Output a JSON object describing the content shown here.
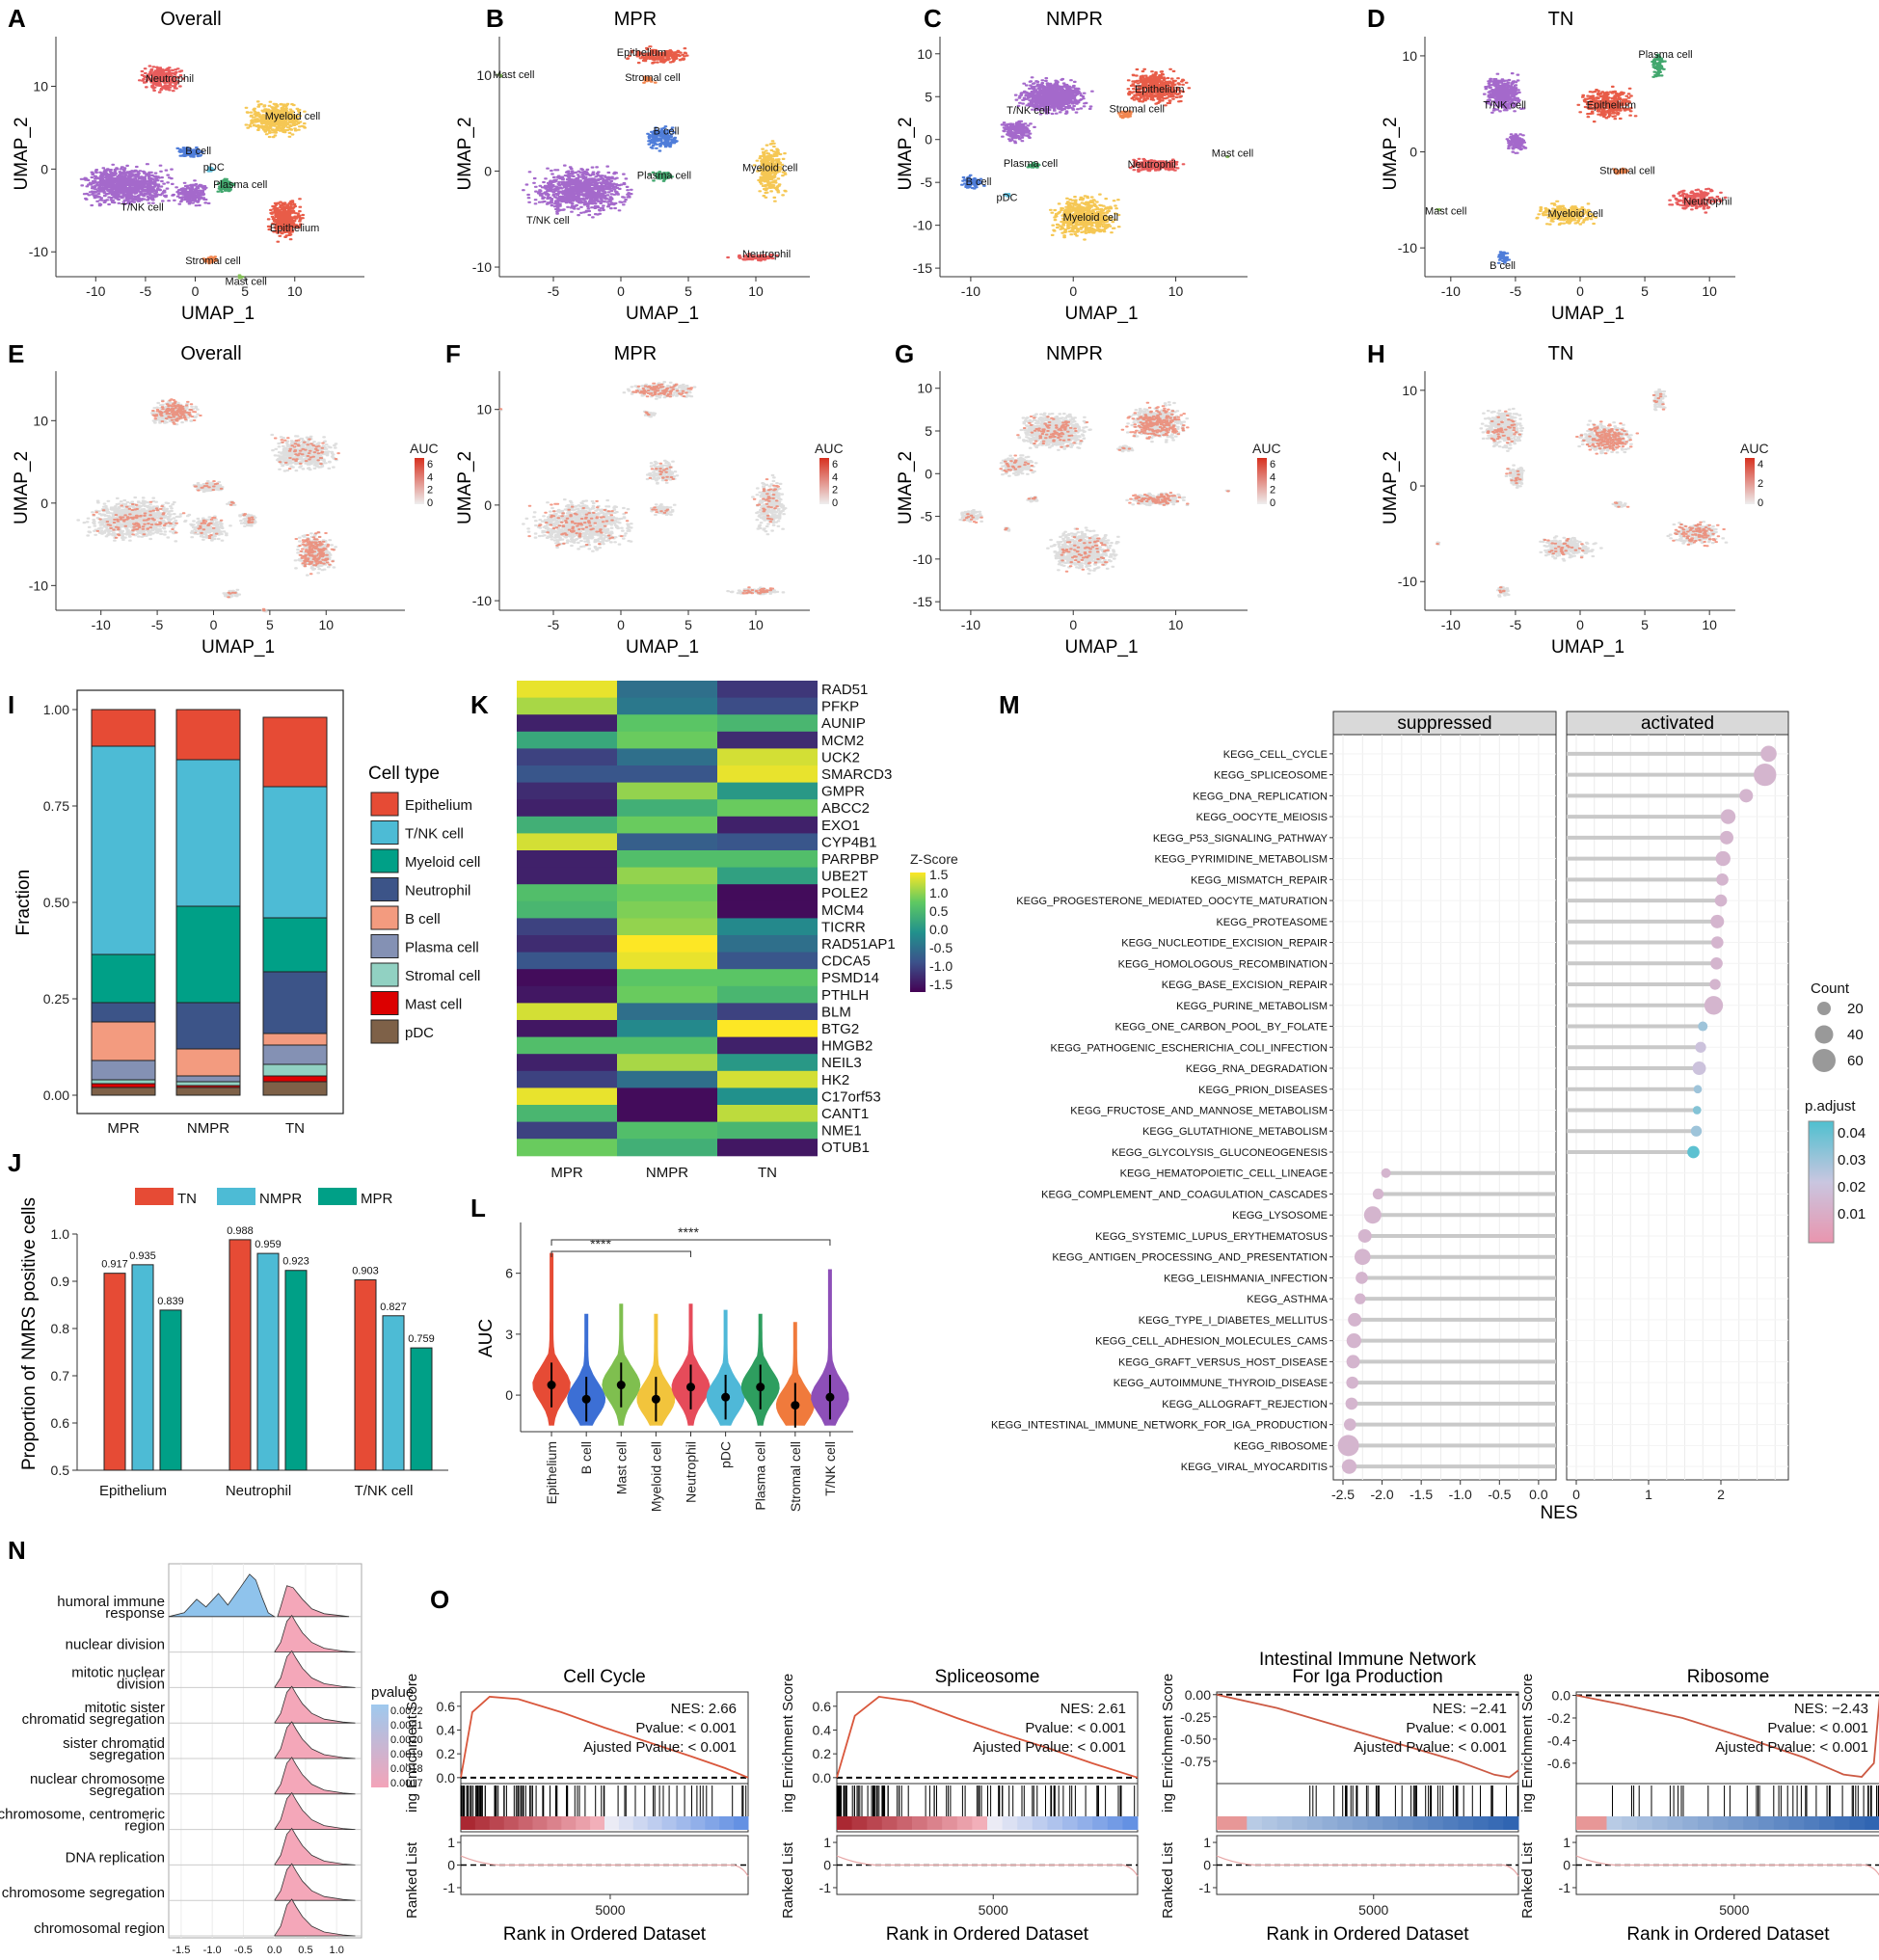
{
  "panel_letters": [
    "A",
    "B",
    "C",
    "D",
    "E",
    "F",
    "G",
    "H",
    "I",
    "J",
    "K",
    "L",
    "M",
    "N",
    "O"
  ],
  "umap_titles": [
    "Overall",
    "MPR",
    "NMPR",
    "TN"
  ],
  "umap_axes": {
    "x": "UMAP_1",
    "y": "UMAP_2"
  },
  "umap_celltype_labels": {
    "A": [
      "Neutrophil",
      "Myeloid cell",
      "B cell",
      "pDC",
      "Plasma cell",
      "T/NK cell",
      "Epithelium",
      "Stromal cell",
      "Mast cell"
    ],
    "B": [
      "Epithelium",
      "Stromal cell",
      "Mast cell",
      "B cell",
      "Plasma cell",
      "Myeloid cell",
      "T/NK cell",
      "Neutrophil"
    ],
    "C": [
      "T/NK cell",
      "Epithelium",
      "Stromal cell",
      "Plasma cell",
      "Neutrophil",
      "Mast cell",
      "B cell",
      "pDC",
      "Myeloid cell"
    ],
    "D": [
      "Plasma cell",
      "T/NK cell",
      "Epithelium",
      "Stromal cell",
      "Neutrophil",
      "Myeloid cell",
      "Mast cell",
      "B cell"
    ]
  },
  "auc_legend": {
    "title": "AUC",
    "ticks": [
      "6",
      "4",
      "2",
      "0"
    ],
    "ticks_h": [
      "4",
      "2",
      "0"
    ]
  },
  "chart_data": [
    {
      "id": "I",
      "type": "bar",
      "stacked": true,
      "categories": [
        "MPR",
        "NMPR",
        "TN"
      ],
      "ylabel": "Fraction",
      "ylim": [
        0,
        1
      ],
      "yticks": [
        "0.00",
        "0.25",
        "0.50",
        "0.75",
        "1.00"
      ],
      "legend_title": "Cell type",
      "series": [
        {
          "name": "Epithelium",
          "color": "#e64b35",
          "values": [
            0.095,
            0.13,
            0.18
          ]
        },
        {
          "name": "T/NK cell",
          "color": "#4dbbd5",
          "values": [
            0.54,
            0.38,
            0.34
          ]
        },
        {
          "name": "Myeloid cell",
          "color": "#00a087",
          "values": [
            0.125,
            0.25,
            0.14
          ]
        },
        {
          "name": "Neutrophil",
          "color": "#3c5488",
          "values": [
            0.05,
            0.12,
            0.16
          ]
        },
        {
          "name": "B cell",
          "color": "#f39b7f",
          "values": [
            0.1,
            0.07,
            0.03
          ]
        },
        {
          "name": "Plasma cell",
          "color": "#8491b4",
          "values": [
            0.05,
            0.015,
            0.05
          ]
        },
        {
          "name": "Stromal cell",
          "color": "#91d1c2",
          "values": [
            0.01,
            0.01,
            0.03
          ]
        },
        {
          "name": "Mast cell",
          "color": "#dc0000",
          "values": [
            0.01,
            0.005,
            0.015
          ]
        },
        {
          "name": "pDC",
          "color": "#7e6148",
          "values": [
            0.02,
            0.02,
            0.035
          ]
        }
      ]
    },
    {
      "id": "J",
      "type": "bar",
      "categories": [
        "Epithelium",
        "Neutrophil",
        "T/NK cell"
      ],
      "ylabel": "Proportion of NMRS positive cells",
      "ylim": [
        0.5,
        1.0
      ],
      "yticks": [
        "0.5",
        "0.6",
        "0.7",
        "0.8",
        "0.9",
        "1.0"
      ],
      "series": [
        {
          "name": "TN",
          "color": "#e64b35",
          "values": [
            0.917,
            0.988,
            0.903
          ]
        },
        {
          "name": "NMPR",
          "color": "#4dbbd5",
          "values": [
            0.935,
            0.959,
            0.827
          ]
        },
        {
          "name": "MPR",
          "color": "#00a087",
          "values": [
            0.839,
            0.923,
            0.759
          ]
        }
      ],
      "value_labels": [
        [
          "0.917",
          "0.935",
          "0.839"
        ],
        [
          "0.988",
          "0.959",
          "0.923"
        ],
        [
          "0.903",
          "0.827",
          "0.759"
        ]
      ]
    },
    {
      "id": "K",
      "type": "heatmap",
      "columns": [
        "MPR",
        "NMPR",
        "TN"
      ],
      "rows": [
        "RAD51",
        "PFKP",
        "AUNIP",
        "MCM2",
        "UCK2",
        "SMARCD3",
        "GMPR",
        "ABCC2",
        "EXO1",
        "CYP4B1",
        "PARPBP",
        "UBE2T",
        "POLE2",
        "MCM4",
        "TICRR",
        "RAD51AP1",
        "CDCA5",
        "PSMD14",
        "PTHLH",
        "BLM",
        "BTG2",
        "HMGB2",
        "NEIL3",
        "HK2",
        "C17orf53",
        "CANT1",
        "NME1",
        "OTUB1"
      ],
      "values": [
        [
          1.4,
          -0.4,
          -1.0
        ],
        [
          1.1,
          -0.3,
          -0.8
        ],
        [
          -1.2,
          0.7,
          0.5
        ],
        [
          0.3,
          0.8,
          -1.1
        ],
        [
          -0.9,
          -0.4,
          1.3
        ],
        [
          -0.7,
          -0.7,
          1.4
        ],
        [
          -1.1,
          1.0,
          0.1
        ],
        [
          -1.2,
          0.4,
          0.8
        ],
        [
          0.4,
          0.8,
          -1.2
        ],
        [
          1.3,
          -0.6,
          -0.7
        ],
        [
          -1.2,
          0.6,
          0.6
        ],
        [
          -1.2,
          1.0,
          0.2
        ],
        [
          0.6,
          0.8,
          -1.4
        ],
        [
          0.5,
          0.9,
          -1.4
        ],
        [
          -0.9,
          1.0,
          -0.1
        ],
        [
          -1.1,
          1.5,
          -0.4
        ],
        [
          -0.7,
          1.4,
          -0.7
        ],
        [
          -1.4,
          0.7,
          0.7
        ],
        [
          -1.3,
          0.8,
          0.5
        ],
        [
          1.3,
          -0.4,
          -0.9
        ],
        [
          -1.3,
          -0.1,
          1.5
        ],
        [
          0.6,
          0.6,
          -1.2
        ],
        [
          -1.2,
          1.1,
          0.1
        ],
        [
          -0.9,
          -0.4,
          1.3
        ],
        [
          1.4,
          -1.4,
          0.0
        ],
        [
          0.5,
          -1.4,
          1.2
        ],
        [
          -0.9,
          0.6,
          0.5
        ],
        [
          0.8,
          0.4,
          -1.3
        ]
      ],
      "legend_title": "Z-Score",
      "legend_ticks": [
        "1.5",
        "1.0",
        "0.5",
        "0.0",
        "-0.5",
        "-1.0",
        "-1.5"
      ],
      "colormap": [
        "#fde725",
        "#5ec962",
        "#21918c",
        "#3b528b",
        "#440154"
      ]
    },
    {
      "id": "L",
      "type": "violin",
      "categories": [
        "Epithelium",
        "B cell",
        "Mast cell",
        "Myeloid cell",
        "Neutrophil",
        "pDC",
        "Plasma cell",
        "Stromal cell",
        "T/NK cell"
      ],
      "colors": [
        "#e64b35",
        "#3c6fd5",
        "#7fbf4f",
        "#f2c43c",
        "#e64b5a",
        "#4fb8d8",
        "#2e9e5f",
        "#f07a3c",
        "#8d4fb8"
      ],
      "medians": [
        0.5,
        -0.2,
        0.5,
        -0.2,
        0.4,
        -0.1,
        0.4,
        -0.5,
        -0.1
      ],
      "max": [
        7.0,
        4.0,
        4.5,
        4.0,
        4.5,
        4.2,
        4.0,
        3.6,
        6.2
      ],
      "min": [
        -1.5,
        -1.5,
        -1.5,
        -1.5,
        -1.5,
        -1.5,
        -1.5,
        -1.5,
        -1.5
      ],
      "ylabel": "AUC",
      "ylim": [
        -1.8,
        8.5
      ],
      "yticks": [
        "0",
        "3",
        "6"
      ],
      "significance": [
        {
          "from": "Epithelium",
          "to": "Neutrophil",
          "label": "****"
        },
        {
          "from": "Epithelium",
          "to": "T/NK cell",
          "label": "****"
        }
      ]
    },
    {
      "id": "M",
      "type": "scatter",
      "facets": [
        "suppressed",
        "activated"
      ],
      "xlabel": "NES",
      "xticks_suppressed": [
        "-2.5",
        "-2.0",
        "-1.5",
        "-1.0",
        "-0.5",
        "0.0"
      ],
      "xticks_activated": [
        "0",
        "1",
        "2"
      ],
      "pathways": [
        {
          "name": "KEGG_CELL_CYCLE",
          "nes": 2.66,
          "count": 40,
          "p": 0.017
        },
        {
          "name": "KEGG_SPLICEOSOME",
          "nes": 2.61,
          "count": 65,
          "p": 0.017
        },
        {
          "name": "KEGG_DNA_REPLICATION",
          "nes": 2.35,
          "count": 30,
          "p": 0.017
        },
        {
          "name": "KEGG_OOCYTE_MEIOSIS",
          "nes": 2.1,
          "count": 35,
          "p": 0.017
        },
        {
          "name": "KEGG_P53_SIGNALING_PATHWAY",
          "nes": 2.08,
          "count": 30,
          "p": 0.017
        },
        {
          "name": "KEGG_PYRIMIDINE_METABOLISM",
          "nes": 2.03,
          "count": 35,
          "p": 0.017
        },
        {
          "name": "KEGG_MISMATCH_REPAIR",
          "nes": 2.02,
          "count": 25,
          "p": 0.017
        },
        {
          "name": "KEGG_PROGESTERONE_MEDIATED_OOCYTE_MATURATION",
          "nes": 2.0,
          "count": 25,
          "p": 0.017
        },
        {
          "name": "KEGG_PROTEASOME",
          "nes": 1.95,
          "count": 30,
          "p": 0.017
        },
        {
          "name": "KEGG_NUCLEOTIDE_EXCISION_REPAIR",
          "nes": 1.95,
          "count": 25,
          "p": 0.017
        },
        {
          "name": "KEGG_HOMOLOGOUS_RECOMBINATION",
          "nes": 1.94,
          "count": 25,
          "p": 0.017
        },
        {
          "name": "KEGG_BASE_EXCISION_REPAIR",
          "nes": 1.92,
          "count": 20,
          "p": 0.017
        },
        {
          "name": "KEGG_PURINE_METABOLISM",
          "nes": 1.9,
          "count": 50,
          "p": 0.017
        },
        {
          "name": "KEGG_ONE_CARBON_POOL_BY_FOLATE",
          "nes": 1.75,
          "count": 15,
          "p": 0.03
        },
        {
          "name": "KEGG_PATHOGENIC_ESCHERICHIA_COLI_INFECTION",
          "nes": 1.72,
          "count": 20,
          "p": 0.022
        },
        {
          "name": "KEGG_RNA_DEGRADATION",
          "nes": 1.7,
          "count": 30,
          "p": 0.022
        },
        {
          "name": "KEGG_PRION_DISEASES",
          "nes": 1.68,
          "count": 10,
          "p": 0.03
        },
        {
          "name": "KEGG_FRUCTOSE_AND_MANNOSE_METABOLISM",
          "nes": 1.67,
          "count": 10,
          "p": 0.034
        },
        {
          "name": "KEGG_GLUTATHIONE_METABOLISM",
          "nes": 1.66,
          "count": 20,
          "p": 0.03
        },
        {
          "name": "KEGG_GLYCOLYSIS_GLUCONEOGENESIS",
          "nes": 1.62,
          "count": 25,
          "p": 0.04
        },
        {
          "name": "KEGG_HEMATOPOIETIC_CELL_LINEAGE",
          "nes": -1.95,
          "count": 15,
          "p": 0.017
        },
        {
          "name": "KEGG_COMPLEMENT_AND_COAGULATION_CASCADES",
          "nes": -2.05,
          "count": 20,
          "p": 0.017
        },
        {
          "name": "KEGG_LYSOSOME",
          "nes": -2.12,
          "count": 45,
          "p": 0.017
        },
        {
          "name": "KEGG_SYSTEMIC_LUPUS_ERYTHEMATOSUS",
          "nes": -2.22,
          "count": 30,
          "p": 0.017
        },
        {
          "name": "KEGG_ANTIGEN_PROCESSING_AND_PRESENTATION",
          "nes": -2.25,
          "count": 40,
          "p": 0.017
        },
        {
          "name": "KEGG_LEISHMANIA_INFECTION",
          "nes": -2.26,
          "count": 25,
          "p": 0.017
        },
        {
          "name": "KEGG_ASTHMA",
          "nes": -2.28,
          "count": 20,
          "p": 0.017
        },
        {
          "name": "KEGG_TYPE_I_DIABETES_MELLITUS",
          "nes": -2.35,
          "count": 30,
          "p": 0.017
        },
        {
          "name": "KEGG_CELL_ADHESION_MOLECULES_CAMS",
          "nes": -2.36,
          "count": 35,
          "p": 0.017
        },
        {
          "name": "KEGG_GRAFT_VERSUS_HOST_DISEASE",
          "nes": -2.37,
          "count": 30,
          "p": 0.017
        },
        {
          "name": "KEGG_AUTOIMMUNE_THYROID_DISEASE",
          "nes": -2.38,
          "count": 25,
          "p": 0.017
        },
        {
          "name": "KEGG_ALLOGRAFT_REJECTION",
          "nes": -2.39,
          "count": 25,
          "p": 0.017
        },
        {
          "name": "KEGG_INTESTINAL_IMMUNE_NETWORK_FOR_IGA_PRODUCTION",
          "nes": -2.41,
          "count": 25,
          "p": 0.017
        },
        {
          "name": "KEGG_RIBOSOME",
          "nes": -2.43,
          "count": 60,
          "p": 0.017
        },
        {
          "name": "KEGG_VIRAL_MYOCARDITIS",
          "nes": -2.42,
          "count": 35,
          "p": 0.017
        }
      ],
      "size_legend_title": "Count",
      "size_legend": [
        "20",
        "40",
        "60"
      ],
      "color_legend_title": "p.adjust",
      "color_legend": [
        "0.04",
        "0.03",
        "0.02",
        "0.01"
      ]
    },
    {
      "id": "N",
      "type": "area",
      "subtype": "ridgeline",
      "categories": [
        "humoral immune response",
        "nuclear division",
        "mitotic nuclear division",
        "mitotic sister chromatid segregation",
        "sister chromatid segregation",
        "nuclear chromosome segregation",
        "chromosome, centromeric region",
        "DNA replication",
        "chromosome segregation",
        "chromosomal region"
      ],
      "xticks": [
        "-1.5",
        "-1.0",
        "-0.5",
        "0.0",
        "0.5",
        "1.0"
      ],
      "xlim": [
        -1.7,
        1.4
      ],
      "legend_title": "pvalue",
      "legend_ticks": [
        "0.0022",
        "0.0021",
        "0.0020",
        "0.0019",
        "0.0018",
        "0.0017"
      ]
    },
    {
      "id": "O",
      "type": "line",
      "plots": [
        {
          "title": "Cell Cycle",
          "nes": "NES: 2.66",
          "pvalue": "Pvalue: < 0.001",
          "adj": "Ajusted Pvalue: < 0.001",
          "yticks": [
            "0.6",
            "0.4",
            "0.2",
            "0.0"
          ],
          "ylim": [
            -0.05,
            0.72
          ],
          "curve": [
            [
              0,
              0
            ],
            [
              0.04,
              0.55
            ],
            [
              0.1,
              0.68
            ],
            [
              0.2,
              0.66
            ],
            [
              0.35,
              0.55
            ],
            [
              0.5,
              0.42
            ],
            [
              0.65,
              0.3
            ],
            [
              0.8,
              0.18
            ],
            [
              0.92,
              0.08
            ],
            [
              1,
              0
            ]
          ],
          "red": true
        },
        {
          "title": "Spliceosome",
          "nes": "NES: 2.61",
          "pvalue": "Pvalue: < 0.001",
          "adj": "Ajusted Pvalue: < 0.001",
          "yticks": [
            "0.6",
            "0.4",
            "0.2",
            "0.0"
          ],
          "ylim": [
            -0.05,
            0.72
          ],
          "curve": [
            [
              0,
              0
            ],
            [
              0.06,
              0.52
            ],
            [
              0.14,
              0.68
            ],
            [
              0.25,
              0.64
            ],
            [
              0.4,
              0.5
            ],
            [
              0.55,
              0.37
            ],
            [
              0.7,
              0.25
            ],
            [
              0.85,
              0.12
            ],
            [
              1,
              0
            ]
          ],
          "red": true
        },
        {
          "title": "Intestinal Immune Network For Iga Production",
          "nes": "NES: −2.41",
          "pvalue": "Pvalue: < 0.001",
          "adj": "Ajusted Pvalue: < 0.001",
          "yticks": [
            "0.00",
            "-0.25",
            "-0.50",
            "-0.75"
          ],
          "ylim": [
            -1.0,
            0.03
          ],
          "curve": [
            [
              0,
              0
            ],
            [
              0.2,
              -0.15
            ],
            [
              0.4,
              -0.35
            ],
            [
              0.6,
              -0.55
            ],
            [
              0.8,
              -0.75
            ],
            [
              0.92,
              -0.9
            ],
            [
              0.97,
              -0.93
            ],
            [
              1,
              -0.85
            ]
          ],
          "red": false
        },
        {
          "title": "Ribosome",
          "nes": "NES: −2.43",
          "pvalue": "Pvalue: < 0.001",
          "adj": "Ajusted Pvalue: < 0.001",
          "yticks": [
            "0.0",
            "-0.2",
            "-0.4",
            "-0.6"
          ],
          "ylim": [
            -0.78,
            0.03
          ],
          "curve": [
            [
              0,
              0
            ],
            [
              0.15,
              -0.08
            ],
            [
              0.35,
              -0.2
            ],
            [
              0.55,
              -0.37
            ],
            [
              0.75,
              -0.55
            ],
            [
              0.88,
              -0.7
            ],
            [
              0.94,
              -0.72
            ],
            [
              0.98,
              -0.6
            ],
            [
              1,
              0
            ]
          ],
          "red": false
        }
      ],
      "ylabel_top": "Enrichment Score",
      "ylabel_bottom": "Ranked List",
      "ylabel_mid": "ing",
      "xlabel": "Rank in Ordered Dataset",
      "xtick": "5000",
      "rank_yticks": [
        "1",
        "0",
        "-1"
      ]
    }
  ]
}
